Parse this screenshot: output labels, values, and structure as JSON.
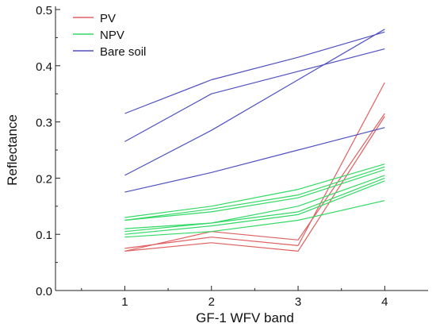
{
  "chart_data": {
    "type": "line",
    "xlabel": "GF-1 WFV band",
    "ylabel": "Reflectance",
    "x": [
      1,
      2,
      3,
      4
    ],
    "xlim": [
      0.2,
      4.5
    ],
    "ylim": [
      0.0,
      0.5
    ],
    "xticks": [
      1,
      2,
      3,
      4
    ],
    "yticks": [
      0.0,
      0.1,
      0.2,
      0.3,
      0.4,
      0.5
    ],
    "ytick_labels": [
      "0.0",
      "0.1",
      "0.2",
      "0.3",
      "0.4",
      "0.5"
    ],
    "grid": false,
    "legend_position": "top-left",
    "series": [
      {
        "name": "PV",
        "color": "#e06060",
        "lines": [
          [
            0.075,
            0.095,
            0.08,
            0.37
          ],
          [
            0.07,
            0.085,
            0.07,
            0.31
          ],
          [
            0.07,
            0.105,
            0.09,
            0.315
          ]
        ]
      },
      {
        "name": "NPV",
        "color": "#33d966",
        "lines": [
          [
            0.13,
            0.15,
            0.18,
            0.225
          ],
          [
            0.125,
            0.145,
            0.17,
            0.22
          ],
          [
            0.125,
            0.14,
            0.165,
            0.215
          ],
          [
            0.105,
            0.12,
            0.15,
            0.205
          ],
          [
            0.1,
            0.115,
            0.135,
            0.195
          ],
          [
            0.11,
            0.12,
            0.14,
            0.2
          ],
          [
            0.095,
            0.105,
            0.125,
            0.16
          ]
        ]
      },
      {
        "name": "Bare soil",
        "color": "#5050c0",
        "lines": [
          [
            0.315,
            0.375,
            0.415,
            0.46
          ],
          [
            0.265,
            0.35,
            0.39,
            0.43
          ],
          [
            0.205,
            0.285,
            0.375,
            0.465
          ],
          [
            0.175,
            0.21,
            0.25,
            0.29
          ]
        ]
      }
    ]
  }
}
